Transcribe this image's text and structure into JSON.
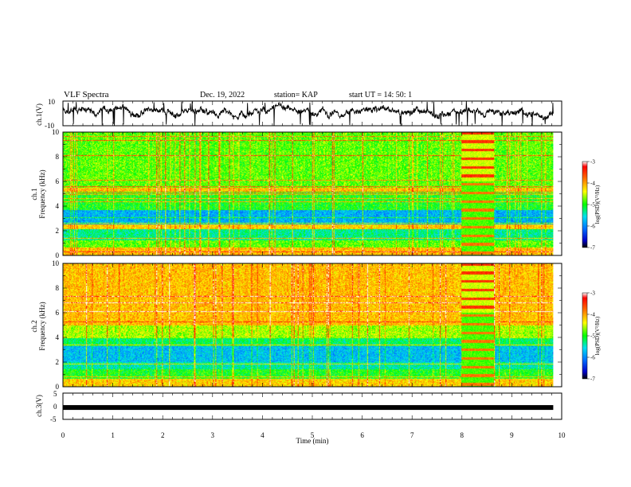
{
  "header": {
    "title": "VLF Spectra",
    "date": "Dec. 19, 2022",
    "station": "station= KAP",
    "start": "start UT = 14: 50: 1"
  },
  "chart_data": [
    {
      "type": "line",
      "id": "ch1-waveform",
      "ylabel": "ch.1(V)",
      "ylim": [
        -10,
        10
      ],
      "ytick_labels": [
        "10",
        "-10"
      ],
      "xlim": [
        0,
        10
      ],
      "x_end": 9.83
    },
    {
      "type": "heatmap",
      "id": "ch1-spectrogram",
      "ylabel_line1": "ch.1",
      "ylabel_line2": "Frequency (kHz)",
      "ylim": [
        0,
        10
      ],
      "ytick_labels": [
        "0",
        "2",
        "4",
        "6",
        "8",
        "10"
      ],
      "xlim": [
        0,
        10
      ],
      "x_end": 9.83,
      "event_interval": [
        8.0,
        8.65
      ],
      "colorbar": {
        "label": "log(PSD)(V²/Hz)",
        "range": [
          -7,
          -3
        ],
        "tick_labels": [
          "-3",
          "-4",
          "-5",
          "-6",
          "-7"
        ]
      }
    },
    {
      "type": "heatmap",
      "id": "ch2-spectrogram",
      "ylabel_line1": "ch.2",
      "ylabel_line2": "Frequency (kHz)",
      "ylim": [
        0,
        10
      ],
      "ytick_labels": [
        "0",
        "2",
        "4",
        "6",
        "8",
        "10"
      ],
      "xlim": [
        0,
        10
      ],
      "x_end": 9.83,
      "event_interval": [
        8.0,
        8.65
      ],
      "colorbar": {
        "label": "log(PSD)(V²/Hz)",
        "range": [
          -7,
          -3
        ],
        "tick_labels": [
          "-3",
          "-4",
          "-5",
          "-6",
          "-7"
        ]
      }
    },
    {
      "type": "line",
      "id": "ch3-waveform",
      "ylabel": "ch.3(V)",
      "ylim": [
        -5,
        5
      ],
      "ytick_labels": [
        "5",
        "0",
        "-5"
      ],
      "xlim": [
        0,
        10
      ],
      "x_end": 9.83,
      "level": -0.5,
      "xlabel": "Time (min)",
      "xtick_labels": [
        "0",
        "1",
        "2",
        "3",
        "4",
        "5",
        "6",
        "7",
        "8",
        "9",
        "10"
      ]
    }
  ]
}
